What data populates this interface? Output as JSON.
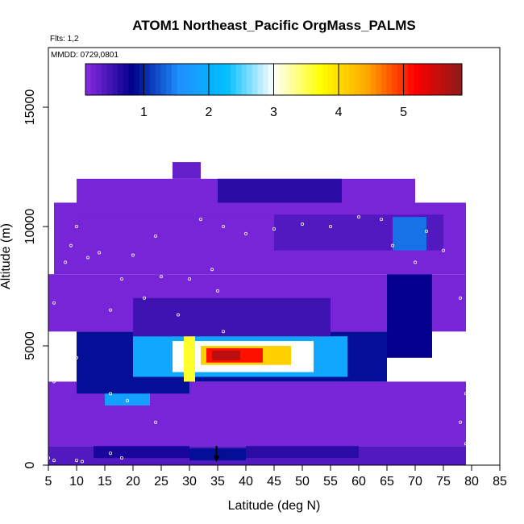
{
  "chart_data": {
    "type": "heatmap",
    "title": "ATOM1 Northeast_Pacific OrgMass_PALMS",
    "annotations": [
      "Flts: 1,2",
      "MMDD: 0729,0801"
    ],
    "xlabel": "Latitude (deg N)",
    "ylabel": "Altitude (m)",
    "xlim": [
      5,
      85
    ],
    "ylim": [
      0,
      17500
    ],
    "x_ticks": [
      5,
      10,
      15,
      20,
      25,
      30,
      35,
      40,
      45,
      50,
      55,
      60,
      65,
      70,
      75,
      80,
      85
    ],
    "y_ticks": [
      0,
      5000,
      10000,
      15000
    ],
    "grid": false,
    "colorbar": {
      "placement": "top-inside",
      "range": [
        0.1,
        5.9
      ],
      "ticks": [
        1,
        2,
        3,
        4,
        5
      ],
      "colors": [
        "#8a2be2",
        "#00008b",
        "#1e90ff",
        "#00bfff",
        "#ffffff",
        "#ffff00",
        "#ffa500",
        "#ff0000",
        "#8b1a1a"
      ]
    },
    "cells": [
      {
        "lat": [
          5,
          79
        ],
        "alt": [
          0,
          800
        ],
        "value": 0.4
      },
      {
        "lat": [
          13,
          30
        ],
        "alt": [
          300,
          900
        ],
        "value": 0.7
      },
      {
        "lat": [
          30,
          40
        ],
        "alt": [
          200,
          700
        ],
        "value": 0.9
      },
      {
        "lat": [
          40,
          60
        ],
        "alt": [
          300,
          900
        ],
        "value": 0.6
      },
      {
        "lat": [
          5,
          79
        ],
        "alt": [
          800,
          3500
        ],
        "value": 0.2
      },
      {
        "lat": [
          15,
          23
        ],
        "alt": [
          2500,
          3100
        ],
        "value": 1.8
      },
      {
        "lat": [
          10,
          30
        ],
        "alt": [
          3000,
          3600
        ],
        "value": 0.9
      },
      {
        "lat": [
          10,
          65
        ],
        "alt": [
          3500,
          5600
        ],
        "value": 0.9
      },
      {
        "lat": [
          20,
          58
        ],
        "alt": [
          3700,
          5400
        ],
        "value": 1.9
      },
      {
        "lat": [
          27,
          52
        ],
        "alt": [
          3900,
          5200
        ],
        "value": 3.0
      },
      {
        "lat": [
          29,
          31
        ],
        "alt": [
          3500,
          5400
        ],
        "value": 3.6
      },
      {
        "lat": [
          32,
          48
        ],
        "alt": [
          4200,
          5000
        ],
        "value": 4.1
      },
      {
        "lat": [
          33,
          43
        ],
        "alt": [
          4300,
          4900
        ],
        "value": 5.1
      },
      {
        "lat": [
          34,
          39
        ],
        "alt": [
          4400,
          4800
        ],
        "value": 5.6
      },
      {
        "lat": [
          5,
          79
        ],
        "alt": [
          5600,
          8000
        ],
        "value": 0.2
      },
      {
        "lat": [
          20,
          55
        ],
        "alt": [
          5400,
          7000
        ],
        "value": 0.5
      },
      {
        "lat": [
          65,
          73
        ],
        "alt": [
          4500,
          8000
        ],
        "value": 0.8
      },
      {
        "lat": [
          6,
          79
        ],
        "alt": [
          8000,
          11000
        ],
        "value": 0.2
      },
      {
        "lat": [
          45,
          75
        ],
        "alt": [
          9000,
          10500
        ],
        "value": 0.4
      },
      {
        "lat": [
          66,
          72
        ],
        "alt": [
          9000,
          10400
        ],
        "value": 1.4
      },
      {
        "lat": [
          10,
          70
        ],
        "alt": [
          10500,
          12000
        ],
        "value": 0.2
      },
      {
        "lat": [
          35,
          57
        ],
        "alt": [
          11000,
          12000
        ],
        "value": 0.6
      },
      {
        "lat": [
          27,
          32
        ],
        "alt": [
          12000,
          12700
        ],
        "value": 0.3
      }
    ],
    "flight_track_points": [
      [
        5,
        300
      ],
      [
        6,
        200
      ],
      [
        10,
        200
      ],
      [
        11,
        150
      ],
      [
        16,
        500
      ],
      [
        18,
        300
      ],
      [
        6,
        3500
      ],
      [
        7,
        5200
      ],
      [
        10,
        4500
      ],
      [
        16,
        3000
      ],
      [
        19,
        2700
      ],
      [
        24,
        1800
      ],
      [
        6,
        6800
      ],
      [
        8,
        8500
      ],
      [
        9,
        9200
      ],
      [
        10,
        10000
      ],
      [
        12,
        8700
      ],
      [
        14,
        8900
      ],
      [
        16,
        6500
      ],
      [
        18,
        7800
      ],
      [
        20,
        8800
      ],
      [
        22,
        7000
      ],
      [
        24,
        9600
      ],
      [
        25,
        7900
      ],
      [
        28,
        6300
      ],
      [
        30,
        7800
      ],
      [
        32,
        10300
      ],
      [
        34,
        8200
      ],
      [
        36,
        10000
      ],
      [
        40,
        9700
      ],
      [
        45,
        9900
      ],
      [
        50,
        10100
      ],
      [
        55,
        10000
      ],
      [
        60,
        10400
      ],
      [
        64,
        10300
      ],
      [
        66,
        9200
      ],
      [
        70,
        8500
      ],
      [
        72,
        9800
      ],
      [
        75,
        9000
      ],
      [
        78,
        7000
      ],
      [
        78,
        4500
      ],
      [
        79,
        3000
      ],
      [
        78,
        1800
      ],
      [
        79,
        900
      ],
      [
        31,
        12800
      ],
      [
        33,
        12700
      ],
      [
        36,
        5600
      ],
      [
        35,
        7300
      ]
    ],
    "marker": {
      "lat": 34.8,
      "alt": 200
    }
  }
}
